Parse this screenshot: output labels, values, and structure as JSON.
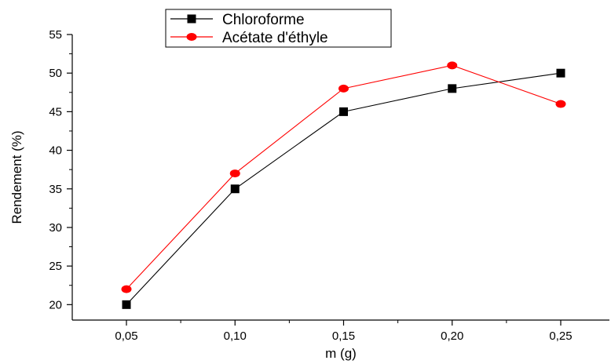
{
  "chart_data": {
    "type": "line",
    "title": "",
    "xlabel": "m (g)",
    "ylabel": "Rendement (%)",
    "x": [
      0.05,
      0.1,
      0.15,
      0.2,
      0.25
    ],
    "x_tick_labels": [
      "0,05",
      "0,10",
      "0,15",
      "0,20",
      "0,25"
    ],
    "xlim": [
      0.025,
      0.275
    ],
    "ylim": [
      18,
      55
    ],
    "y_ticks": [
      20,
      25,
      30,
      35,
      40,
      45,
      50,
      55
    ],
    "y_tick_labels": [
      "20",
      "25",
      "30",
      "35",
      "40",
      "45",
      "50",
      "55"
    ],
    "grid": false,
    "legend_position": "top-center",
    "series": [
      {
        "name": "Chloroforme",
        "values": [
          20,
          35,
          45,
          48,
          50
        ],
        "color": "#000000",
        "marker": "square"
      },
      {
        "name": "Acétate d'éthyle",
        "values": [
          22,
          37,
          48,
          51,
          46
        ],
        "color": "#ff0000",
        "marker": "circle"
      }
    ]
  }
}
